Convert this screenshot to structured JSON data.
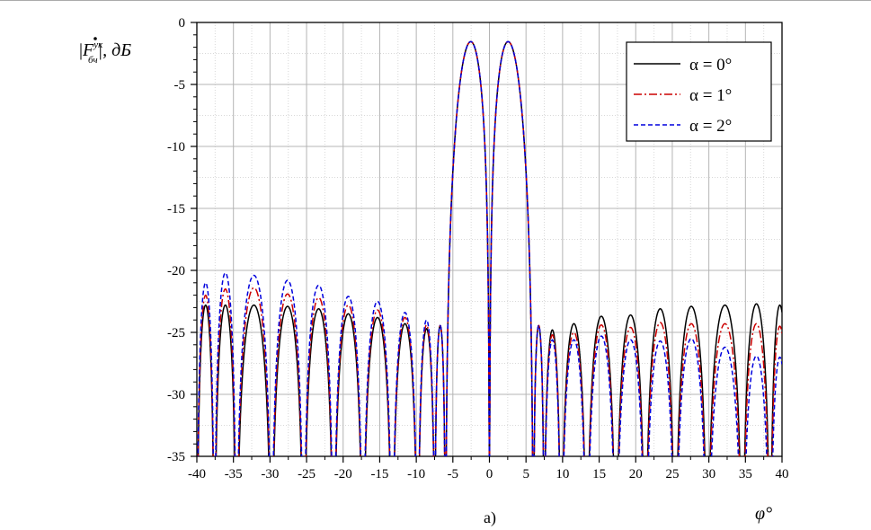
{
  "chart_data": {
    "type": "line",
    "title": "",
    "caption": "а)",
    "xlabel": "φ°",
    "ylabel": {
      "prefix": "|",
      "symbol": "F",
      "sup": "ук",
      "sub": "бч",
      "suffix": "|, дБ"
    },
    "xlim": [
      -40,
      40
    ],
    "ylim": [
      -35,
      0
    ],
    "xticks": [
      -40,
      -35,
      -30,
      -25,
      -20,
      -15,
      -10,
      -5,
      0,
      5,
      10,
      15,
      20,
      25,
      30,
      35,
      40
    ],
    "yticks": [
      0,
      -5,
      -10,
      -15,
      -20,
      -25,
      -30,
      -35
    ],
    "grid": true,
    "legend_position": "top-right",
    "mainlobe": {
      "peaks": [
        -3,
        3
      ],
      "first_null_deg": 7.5
    },
    "series": [
      {
        "name": "α = 0°",
        "color": "#000000",
        "dash": "solid",
        "sidelobes_left": [
          [
            -38.5,
            -22.8
          ],
          [
            -36.5,
            -22.8
          ],
          [
            -32,
            -22.8
          ],
          [
            -27.5,
            -22.9
          ],
          [
            -23.3,
            -23.1
          ],
          [
            -19.3,
            -23.5
          ],
          [
            -15.2,
            -23.8
          ],
          [
            -11.5,
            -24.3
          ],
          [
            -8.5,
            -24.7
          ]
        ],
        "sidelobes_right": [
          [
            8.5,
            -24.8
          ],
          [
            11.5,
            -24.3
          ],
          [
            15.2,
            -23.7
          ],
          [
            19.3,
            -23.6
          ],
          [
            23.3,
            -23.1
          ],
          [
            27.5,
            -22.9
          ],
          [
            32,
            -22.8
          ],
          [
            36.5,
            -22.7
          ],
          [
            40,
            -22.8
          ]
        ]
      },
      {
        "name": "α = 1°",
        "color": "#cc0000",
        "dash": "dashdot",
        "sidelobes_left": [
          [
            -38.5,
            -22.0
          ],
          [
            -36.5,
            -21.5
          ],
          [
            -32,
            -21.4
          ],
          [
            -27.5,
            -21.9
          ],
          [
            -23.3,
            -22.2
          ],
          [
            -19.3,
            -22.8
          ],
          [
            -15.2,
            -23.2
          ],
          [
            -11.5,
            -23.8
          ],
          [
            -8.5,
            -24.4
          ]
        ],
        "sidelobes_right": [
          [
            8.5,
            -25.2
          ],
          [
            11.5,
            -25.0
          ],
          [
            15.2,
            -24.4
          ],
          [
            19.3,
            -24.6
          ],
          [
            23.3,
            -24.2
          ],
          [
            27.5,
            -24.3
          ],
          [
            32,
            -24.3
          ],
          [
            36.5,
            -24.3
          ],
          [
            40,
            -24.5
          ]
        ]
      },
      {
        "name": "α = 2°",
        "color": "#0000dd",
        "dash": "dashed",
        "sidelobes_left": [
          [
            -38.5,
            -21.0
          ],
          [
            -36.5,
            -20.2
          ],
          [
            -32,
            -20.4
          ],
          [
            -27.5,
            -20.8
          ],
          [
            -23.3,
            -21.2
          ],
          [
            -19.3,
            -22.1
          ],
          [
            -15.2,
            -22.5
          ],
          [
            -11.5,
            -23.4
          ],
          [
            -8.5,
            -24.0
          ]
        ],
        "sidelobes_right": [
          [
            8.5,
            -25.6
          ],
          [
            11.5,
            -25.6
          ],
          [
            15.2,
            -25.3
          ],
          [
            19.3,
            -25.6
          ],
          [
            23.3,
            -25.7
          ],
          [
            27.5,
            -25.5
          ],
          [
            32,
            -26.2
          ],
          [
            36.5,
            -26.9
          ],
          [
            40,
            -27.0
          ]
        ]
      }
    ]
  }
}
